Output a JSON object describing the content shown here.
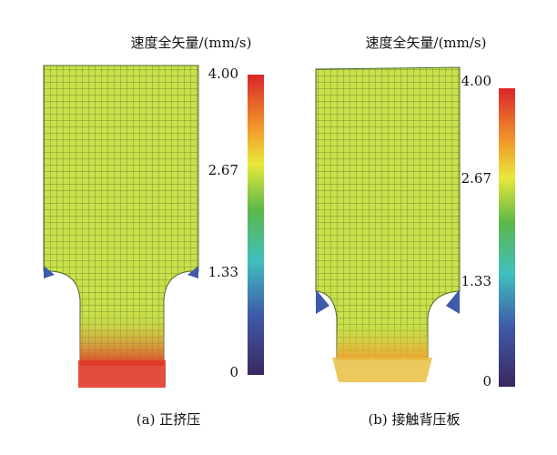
{
  "panels": [
    {
      "caption": "(a) 正挤压",
      "colorbar": {
        "title": "速度全矢量/(mm/s)",
        "ticks": [
          "4.00",
          "2.67",
          "1.33",
          "0"
        ]
      }
    },
    {
      "caption": "(b) 接触背压板",
      "colorbar": {
        "title": "速度全矢量/(mm/s)",
        "ticks": [
          "4.00",
          "2.67",
          "1.33",
          "0"
        ]
      }
    }
  ]
}
